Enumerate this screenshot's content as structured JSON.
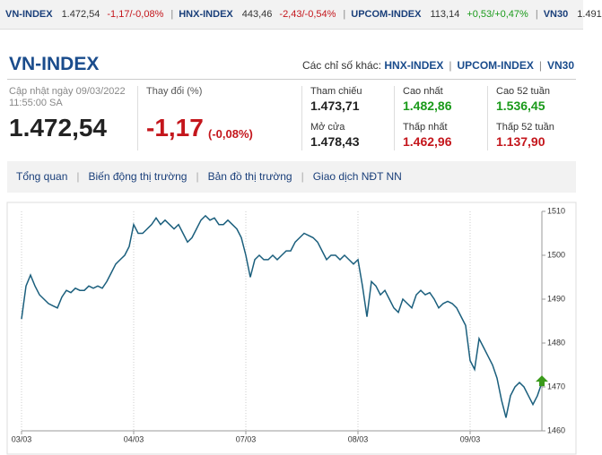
{
  "ticker": [
    {
      "name": "VN-INDEX",
      "value": "1.472,54",
      "change": "-1,17/-0,08%"
    },
    {
      "name": "HNX-INDEX",
      "value": "443,46",
      "change": "-2,43/-0,54%"
    },
    {
      "name": "UPCOM-INDEX",
      "value": "113,14",
      "change": "+0,53/+0,47%"
    },
    {
      "name": "VN30",
      "value": "1.491"
    }
  ],
  "header": {
    "title": "VN-INDEX",
    "other_label": "Các chỉ số khác:",
    "other_links": [
      "HNX-INDEX",
      "UPCOM-INDEX",
      "VN30"
    ]
  },
  "summary": {
    "updated": "Cập nhật ngày 09/03/2022",
    "time": "11:55:00 SA",
    "price": "1.472,54",
    "change_label": "Thay đổi (%)",
    "change": "-1,17",
    "change_pct": "(-0,08%)"
  },
  "stats": [
    {
      "label": "Tham chiếu",
      "value": "1.473,71"
    },
    {
      "label": "Mở cửa",
      "value": "1.478,43"
    },
    {
      "label": "Cao nhất",
      "value": "1.482,86"
    },
    {
      "label": "Thấp nhất",
      "value": "1.462,96"
    },
    {
      "label": "Cao 52 tuần",
      "value": "1.536,45"
    },
    {
      "label": "Thấp 52 tuần",
      "value": "1.137,90"
    }
  ],
  "tabs": [
    "Tổng quan",
    "Biến động thị trường",
    "Bản đồ thị trường",
    "Giao dịch NĐT NN"
  ],
  "chart_data": {
    "type": "line",
    "color": "#1b5f7d",
    "grid": true,
    "x": [
      0,
      1,
      2,
      3,
      4,
      5,
      6,
      7,
      8,
      9,
      10,
      11,
      12,
      13,
      14,
      15,
      16,
      17,
      18,
      19,
      20,
      21,
      22,
      23,
      24,
      25,
      26,
      27,
      28,
      29,
      30,
      31,
      32,
      33,
      34,
      35,
      36,
      37,
      38,
      39,
      40,
      41,
      42,
      43,
      44,
      45,
      46,
      47,
      48,
      49,
      50,
      51,
      52,
      53,
      54,
      55,
      56,
      57,
      58,
      59,
      60,
      61,
      62,
      63,
      64,
      65,
      66,
      67,
      68,
      69,
      70,
      71,
      72,
      73,
      74,
      75,
      76,
      77,
      78,
      79,
      80,
      81,
      82,
      83,
      84,
      85,
      86,
      87,
      88,
      89,
      90,
      91,
      92,
      93,
      94,
      95,
      96,
      97,
      98,
      99,
      100,
      101,
      102,
      103,
      104,
      105,
      106,
      107,
      108,
      109,
      110,
      111,
      112,
      113,
      114,
      115,
      116
    ],
    "values": [
      1485.5,
      1493,
      1495.5,
      1493,
      1491,
      1490,
      1489,
      1488.5,
      1488,
      1490.5,
      1492,
      1491.5,
      1492.5,
      1492,
      1492,
      1493,
      1492.5,
      1493,
      1492.5,
      1494,
      1496,
      1498,
      1499,
      1500,
      1502,
      1507,
      1505,
      1505,
      1506,
      1507,
      1508.5,
      1507,
      1508,
      1507,
      1506,
      1507,
      1505,
      1503,
      1504,
      1506,
      1508,
      1509,
      1508,
      1508.5,
      1507,
      1507,
      1508,
      1507,
      1506,
      1504,
      1500,
      1495,
      1499,
      1500,
      1499,
      1499,
      1500,
      1499,
      1500,
      1501,
      1501,
      1503,
      1504,
      1505,
      1504.5,
      1504,
      1503,
      1501,
      1499,
      1500,
      1500,
      1499,
      1500,
      1499,
      1498,
      1499,
      1493,
      1486,
      1494,
      1493,
      1491,
      1492,
      1490,
      1488,
      1487,
      1490,
      1489,
      1488,
      1491,
      1492,
      1491,
      1491.5,
      1490,
      1488,
      1489,
      1489.5,
      1489,
      1488,
      1486,
      1484,
      1476,
      1474,
      1481,
      1479,
      1477,
      1475,
      1472,
      1467,
      1463,
      1468,
      1470,
      1471,
      1470,
      1468,
      1466,
      1468,
      1471
    ],
    "xlim": [
      0,
      116
    ],
    "xticks": [
      {
        "value": 0,
        "label": "03/03"
      },
      {
        "value": 25,
        "label": "04/03"
      },
      {
        "value": 50,
        "label": "07/03"
      },
      {
        "value": 75,
        "label": "08/03"
      },
      {
        "value": 100,
        "label": "09/03"
      }
    ],
    "ylim": [
      1460,
      1510
    ],
    "yticks": [
      1460,
      1470,
      1480,
      1490,
      1500,
      1510
    ]
  }
}
